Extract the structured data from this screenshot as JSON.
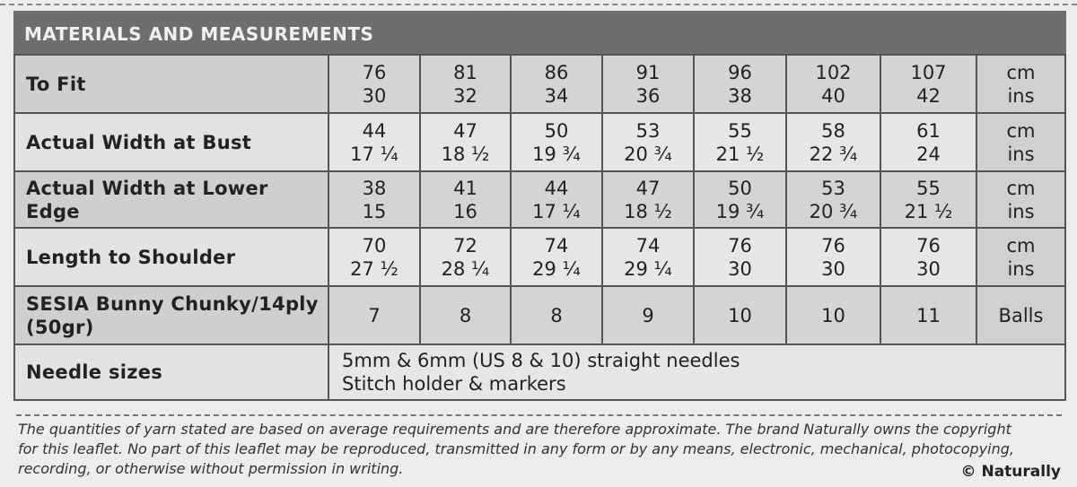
{
  "header": {
    "title": "MATERIALS AND MEASUREMENTS"
  },
  "table": {
    "rows": [
      {
        "label": "To Fit",
        "cells": [
          [
            "76",
            "30"
          ],
          [
            "81",
            "32"
          ],
          [
            "86",
            "34"
          ],
          [
            "91",
            "36"
          ],
          [
            "96",
            "38"
          ],
          [
            "102",
            "40"
          ],
          [
            "107",
            "42"
          ]
        ],
        "unit": [
          "cm",
          "ins"
        ]
      },
      {
        "label": "Actual Width at Bust",
        "cells": [
          [
            "44",
            "17 ¼"
          ],
          [
            "47",
            "18 ½"
          ],
          [
            "50",
            "19 ¾"
          ],
          [
            "53",
            "20 ¾"
          ],
          [
            "55",
            "21 ½"
          ],
          [
            "58",
            "22 ¾"
          ],
          [
            "61",
            "24"
          ]
        ],
        "unit": [
          "cm",
          "ins"
        ]
      },
      {
        "label": "Actual Width at Lower Edge",
        "cells": [
          [
            "38",
            "15"
          ],
          [
            "41",
            "16"
          ],
          [
            "44",
            "17 ¼"
          ],
          [
            "47",
            "18 ½"
          ],
          [
            "50",
            "19 ¾"
          ],
          [
            "53",
            "20 ¾"
          ],
          [
            "55",
            "21 ½"
          ]
        ],
        "unit": [
          "cm",
          "ins"
        ]
      },
      {
        "label": "Length to Shoulder",
        "cells": [
          [
            "70",
            "27 ½"
          ],
          [
            "72",
            "28 ¼"
          ],
          [
            "74",
            "29 ¼"
          ],
          [
            "74",
            "29 ¼"
          ],
          [
            "76",
            "30"
          ],
          [
            "76",
            "30"
          ],
          [
            "76",
            "30"
          ]
        ],
        "unit": [
          "cm",
          "ins"
        ]
      },
      {
        "label": [
          "SESIA Bunny Chunky/14ply",
          "(50gr)"
        ],
        "cells": [
          "7",
          "8",
          "8",
          "9",
          "10",
          "10",
          "11"
        ],
        "unit": "Balls"
      },
      {
        "label": "Needle sizes",
        "text": [
          "5mm & 6mm (US 8 & 10) straight needles",
          "Stitch holder & markers"
        ]
      }
    ]
  },
  "footer": {
    "lines": [
      "The quantities of yarn stated are based on average requirements and are therefore approximate. The brand Naturally owns the copyright",
      "for this leaflet. No part of this leaflet may be reproduced, transmitted in any form or by any means, electronic, mechanical, photocopying,",
      "recording, or otherwise without permission in writing."
    ],
    "copyright": "© Naturally"
  }
}
